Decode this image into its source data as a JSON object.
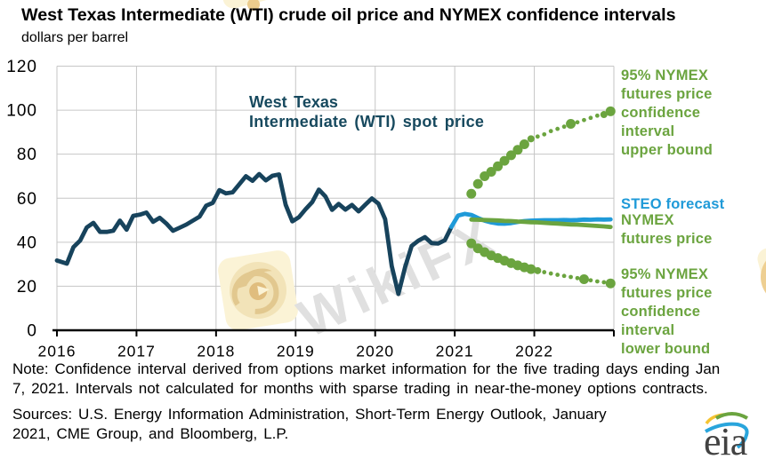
{
  "chart_data": {
    "type": "line",
    "title": "West Texas Intermediate (WTI) crude oil price and NYMEX confidence intervals",
    "ylabel": "dollars per barrel",
    "xlim": [
      2016,
      2023
    ],
    "ylim": [
      0,
      120
    ],
    "grid": true,
    "xticks": [
      2016,
      2017,
      2018,
      2019,
      2020,
      2021,
      2022
    ],
    "yticks": [
      0,
      20,
      40,
      60,
      80,
      100,
      120
    ],
    "series": [
      {
        "name": "West Texas Intermediate (WTI) spot price",
        "color": "#17435c",
        "style": "line",
        "start_month": "2016-01",
        "values": [
          31.7,
          30.3,
          37.8,
          40.8,
          46.7,
          48.8,
          44.7,
          44.7,
          45.2,
          49.8,
          45.7,
          52.0,
          52.5,
          53.5,
          49.3,
          51.1,
          48.5,
          45.2,
          46.6,
          48.0,
          49.8,
          51.6,
          56.6,
          57.9,
          63.7,
          62.2,
          62.7,
          66.3,
          70.0,
          67.9,
          71.0,
          68.1,
          70.2,
          70.8,
          57.0,
          49.5,
          51.4,
          55.0,
          58.2,
          63.9,
          60.8,
          54.7,
          57.4,
          54.8,
          56.9,
          54.0,
          57.0,
          59.9,
          57.5,
          50.5,
          29.2,
          16.5,
          28.6,
          38.3,
          40.7,
          42.3,
          39.6,
          39.4,
          40.9,
          47.0
        ]
      },
      {
        "name": "STEO forecast",
        "color": "#1f9ad8",
        "style": "line",
        "start_month": "2020-12",
        "values": [
          47.0,
          52.1,
          52.9,
          52.4,
          51.0,
          49.8,
          49.0,
          48.5,
          48.4,
          48.7,
          49.2,
          49.6,
          49.8,
          49.9,
          50.0,
          50.0,
          50.0,
          50.1,
          50.0,
          50.1,
          50.3,
          50.2,
          50.4,
          50.3,
          50.4
        ]
      },
      {
        "name": "NYMEX futures price",
        "color": "#6ba43f",
        "style": "line",
        "start_month": "2021-03",
        "values": [
          50.3,
          50.2,
          50.1,
          50.0,
          49.9,
          49.7,
          49.6,
          49.4,
          49.3,
          49.1,
          49.0,
          48.8,
          48.6,
          48.5,
          48.3,
          48.1,
          48.0,
          47.8,
          47.6,
          47.4,
          47.2,
          46.9
        ]
      },
      {
        "name": "95% NYMEX futures price confidence interval upper bound",
        "color": "#6ba43f",
        "style": "dots",
        "start_month": "2021-03",
        "values": [
          62,
          66.5,
          70,
          72,
          74.5,
          77,
          79.5,
          82,
          84.5,
          87,
          88,
          89,
          90.5,
          91.5,
          92.5,
          93.8,
          94.5,
          95.5,
          96.5,
          97.5,
          98,
          99.5
        ],
        "dot_sizes": [
          "L",
          "L",
          "L",
          "L",
          "L",
          "L",
          "L",
          "L",
          "L",
          "M",
          "S",
          "S",
          "S",
          "S",
          "S",
          "L",
          "S",
          "S",
          "S",
          "S",
          "M",
          "L"
        ]
      },
      {
        "name": "95% NYMEX futures price confidence interval lower bound",
        "color": "#6ba43f",
        "style": "dots",
        "start_month": "2021-03",
        "values": [
          39.5,
          37.2,
          35.5,
          34,
          32.8,
          31.6,
          30.5,
          29.5,
          28.6,
          27.8,
          27.1,
          26.4,
          25.8,
          25.2,
          24.7,
          24.2,
          23.7,
          23.2,
          22.7,
          22.2,
          21.8,
          21.3
        ],
        "dot_sizes": [
          "L",
          "L",
          "L",
          "L",
          "L",
          "L",
          "L",
          "L",
          "L",
          "L",
          "M",
          "S",
          "S",
          "S",
          "S",
          "S",
          "S",
          "L",
          "S",
          "S",
          "S",
          "L"
        ]
      }
    ]
  },
  "wti_label": {
    "line1": "West Texas",
    "line2": "Intermediate (WTI) spot price"
  },
  "right_labels": {
    "upper": [
      "95% NYMEX",
      "futures price",
      "confidence",
      "interval",
      "upper bound"
    ],
    "steo": "STEO forecast",
    "nymex": [
      "NYMEX",
      "futures price"
    ],
    "lower": [
      "95% NYMEX",
      "futures price",
      "confidence",
      "interval",
      "lower bound"
    ]
  },
  "note_lines": [
    "Note: Confidence interval derived from options market information for the five trading days ending Jan",
    "7, 2021. Intervals not calculated for months with sparse trading in near-the-money options contracts."
  ],
  "sources_lines": [
    "Sources: U.S. Energy Information Administration, Short-Term Energy Outlook, January",
    "2021, CME Group, and Bloomberg, L.P."
  ],
  "watermark": {
    "text": "WikiFX"
  },
  "logo": {
    "text": "eia"
  },
  "colors": {
    "spot": "#17435c",
    "forecast_blue": "#1f9ad8",
    "nymex_green": "#6ba43f",
    "grid": "#c6c6c6",
    "axis": "#000000",
    "watermark_gray": "#e0e0e0",
    "watermark_cream": "#fbf3d6",
    "watermark_tan": "#e2c88f"
  }
}
